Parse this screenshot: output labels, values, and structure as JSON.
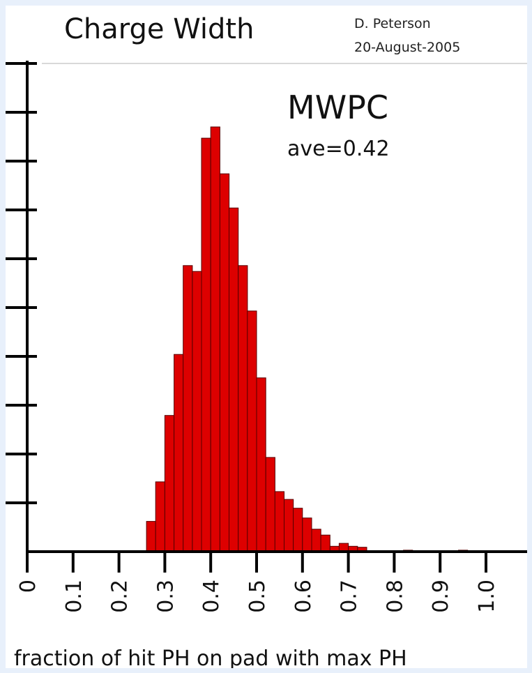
{
  "chart_data": {
    "type": "bar",
    "title": "Charge Width",
    "author": "D. Peterson",
    "date": "20-August-2005",
    "annotation": "MWPC",
    "annotation_sub": "ave=0.42",
    "xlabel": "fraction of hit PH on pad with max PH",
    "ylabel": "",
    "xlim": [
      0,
      1.1
    ],
    "ylim": [
      0,
      10
    ],
    "x_ticks": [
      "0",
      "0.1",
      "0.2",
      "0.3",
      "0.4",
      "0.5",
      "0.6",
      "0.7",
      "0.8",
      "0.9",
      "1.0"
    ],
    "x_tick_values": [
      0,
      0.1,
      0.2,
      0.3,
      0.4,
      0.5,
      0.6,
      0.7,
      0.8,
      0.9,
      1.0
    ],
    "y_tick_count": 10,
    "bin_width": 0.02,
    "bins": [
      {
        "x0": 0.26,
        "value": 0.62
      },
      {
        "x0": 0.28,
        "value": 1.43
      },
      {
        "x0": 0.3,
        "value": 2.79
      },
      {
        "x0": 0.32,
        "value": 4.04
      },
      {
        "x0": 0.34,
        "value": 5.86
      },
      {
        "x0": 0.36,
        "value": 5.74
      },
      {
        "x0": 0.38,
        "value": 8.47
      },
      {
        "x0": 0.4,
        "value": 8.7
      },
      {
        "x0": 0.42,
        "value": 7.74
      },
      {
        "x0": 0.44,
        "value": 7.04
      },
      {
        "x0": 0.46,
        "value": 5.86
      },
      {
        "x0": 0.48,
        "value": 4.93
      },
      {
        "x0": 0.5,
        "value": 3.56
      },
      {
        "x0": 0.52,
        "value": 1.93
      },
      {
        "x0": 0.54,
        "value": 1.23
      },
      {
        "x0": 0.56,
        "value": 1.07
      },
      {
        "x0": 0.58,
        "value": 0.89
      },
      {
        "x0": 0.6,
        "value": 0.69
      },
      {
        "x0": 0.62,
        "value": 0.46
      },
      {
        "x0": 0.64,
        "value": 0.34
      },
      {
        "x0": 0.66,
        "value": 0.11
      },
      {
        "x0": 0.68,
        "value": 0.17
      },
      {
        "x0": 0.7,
        "value": 0.11
      },
      {
        "x0": 0.72,
        "value": 0.09
      },
      {
        "x0": 0.82,
        "value": 0.03
      },
      {
        "x0": 0.94,
        "value": 0.03
      }
    ],
    "bar_color": "#dd0000",
    "bar_edge_color": "#550000",
    "grid": false
  }
}
